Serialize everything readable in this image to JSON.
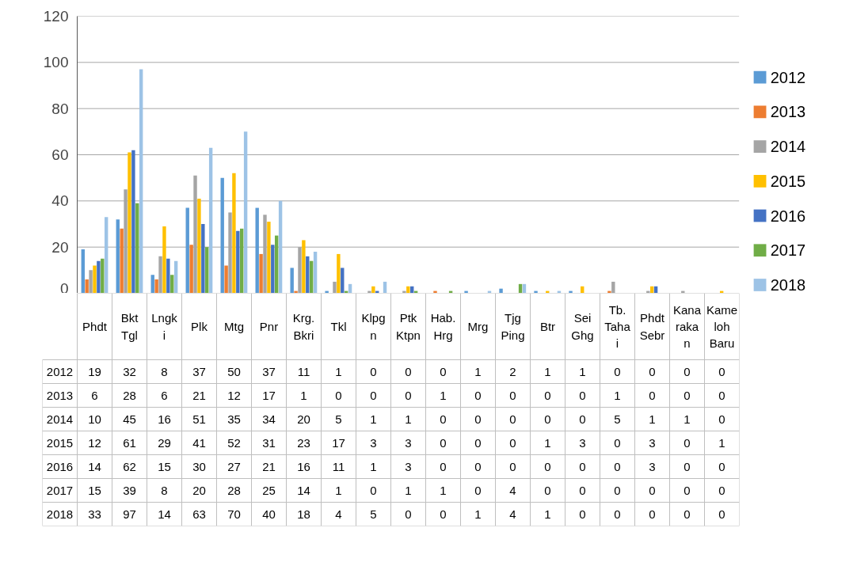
{
  "chart_data": {
    "type": "bar",
    "categories": [
      "Phdt",
      "Bkt Tgl",
      "Lngki",
      "Plk",
      "Mtg",
      "Pnr",
      "Krg. Bkri",
      "Tkl",
      "Klpgn",
      "Ptk Ktpn",
      "Hab. Hrg",
      "Mrg",
      "Tjg Ping",
      "Btr",
      "Sei Ghg",
      "Tb. Tahai",
      "Phdt Sebr",
      "Kanarakan",
      "Kameloh Baru"
    ],
    "series": [
      {
        "name": "2012",
        "color": "#5b9bd5",
        "values": [
          19,
          32,
          8,
          37,
          50,
          37,
          11,
          1,
          0,
          0,
          0,
          1,
          2,
          1,
          1,
          0,
          0,
          0,
          0
        ]
      },
      {
        "name": "2013",
        "color": "#ed7d31",
        "values": [
          6,
          28,
          6,
          21,
          12,
          17,
          1,
          0,
          0,
          0,
          1,
          0,
          0,
          0,
          0,
          1,
          0,
          0,
          0
        ]
      },
      {
        "name": "2014",
        "color": "#a5a5a5",
        "values": [
          10,
          45,
          16,
          51,
          35,
          34,
          20,
          5,
          1,
          1,
          0,
          0,
          0,
          0,
          0,
          5,
          1,
          1,
          0
        ]
      },
      {
        "name": "2015",
        "color": "#ffc000",
        "values": [
          12,
          61,
          29,
          41,
          52,
          31,
          23,
          17,
          3,
          3,
          0,
          0,
          0,
          1,
          3,
          0,
          3,
          0,
          1
        ]
      },
      {
        "name": "2016",
        "color": "#4472c4",
        "values": [
          14,
          62,
          15,
          30,
          27,
          21,
          16,
          11,
          1,
          3,
          0,
          0,
          0,
          0,
          0,
          0,
          3,
          0,
          0
        ]
      },
      {
        "name": "2017",
        "color": "#70ad47",
        "values": [
          15,
          39,
          8,
          20,
          28,
          25,
          14,
          1,
          0,
          1,
          1,
          0,
          4,
          0,
          0,
          0,
          0,
          0,
          0
        ]
      },
      {
        "name": "2018",
        "color": "#9dc3e6",
        "values": [
          33,
          97,
          14,
          63,
          70,
          40,
          18,
          4,
          5,
          0,
          0,
          1,
          4,
          1,
          0,
          0,
          0,
          0,
          0
        ]
      }
    ],
    "ylim": [
      0,
      120
    ],
    "yticks": [
      0,
      20,
      40,
      60,
      80,
      100,
      120
    ],
    "grid": "y",
    "legend": "right",
    "data_labels": true
  }
}
